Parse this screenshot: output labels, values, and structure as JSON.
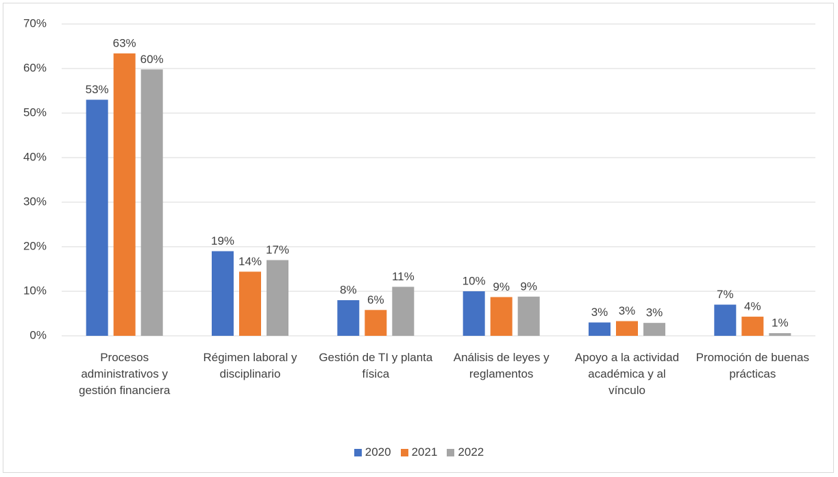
{
  "chart_data": {
    "type": "bar",
    "categories": [
      "Procesos administrativos y gestión financiera",
      "Régimen laboral y disciplinario",
      "Gestión de TI y planta física",
      "Análisis de leyes y reglamentos",
      "Apoyo a la actividad académica y al vínculo",
      "Promoción de buenas prácticas"
    ],
    "series": [
      {
        "name": "2020",
        "color": "#4472c4",
        "values": [
          53,
          19,
          8,
          10,
          3,
          7
        ],
        "value_labels": [
          "53%",
          "19%",
          "8%",
          "10%",
          "3%",
          "7%"
        ]
      },
      {
        "name": "2021",
        "color": "#ed7d31",
        "values": [
          63.4,
          14.4,
          5.8,
          8.7,
          3.3,
          4.3
        ],
        "value_labels": [
          "63%",
          "14%",
          "6%",
          "9%",
          "3%",
          "4%"
        ]
      },
      {
        "name": "2022",
        "color": "#a5a5a5",
        "values": [
          59.8,
          17,
          11,
          8.8,
          2.9,
          0.6
        ],
        "value_labels": [
          "60%",
          "17%",
          "11%",
          "9%",
          "3%",
          "1%"
        ]
      }
    ],
    "ylim": [
      0,
      70
    ],
    "yticks": [
      {
        "value": 0,
        "label": "0%"
      },
      {
        "value": 10,
        "label": "10%"
      },
      {
        "value": 20,
        "label": "20%"
      },
      {
        "value": 30,
        "label": "30%"
      },
      {
        "value": 40,
        "label": "40%"
      },
      {
        "value": 50,
        "label": "50%"
      },
      {
        "value": 60,
        "label": "60%"
      },
      {
        "value": 70,
        "label": "70%"
      }
    ],
    "grid": true,
    "legend": "bottom"
  }
}
